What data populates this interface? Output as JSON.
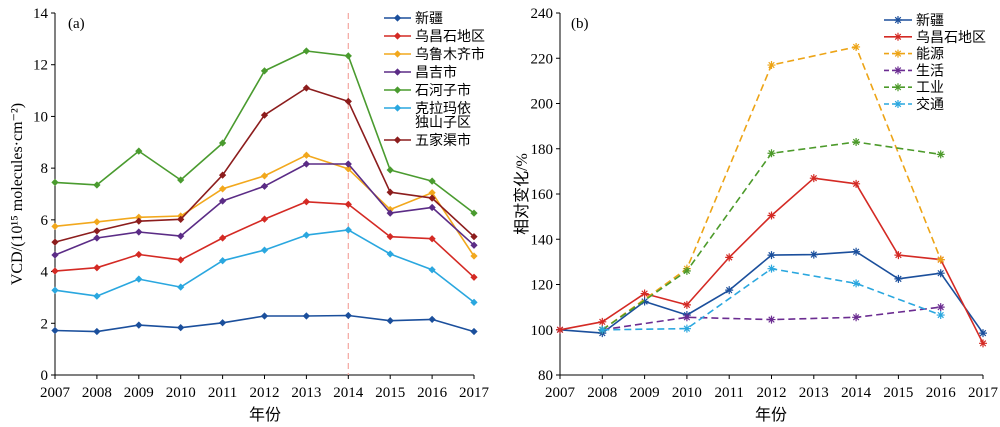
{
  "chart_data": [
    {
      "type": "line",
      "panel_label": "(a)",
      "x": [
        2007,
        2008,
        2009,
        2010,
        2011,
        2012,
        2013,
        2014,
        2015,
        2016,
        2017
      ],
      "xlim": [
        2007,
        2017
      ],
      "xlabel": "年份",
      "ylabel": "VCD/(10¹⁵ molecules·cm⁻²)",
      "ylim": [
        0,
        14
      ],
      "yticks": [
        0,
        2,
        4,
        6,
        8,
        10,
        12,
        14
      ],
      "grid": false,
      "legend_position": "top-right",
      "marker": "diamond",
      "reference_line": {
        "x": 2014,
        "style": "dashed",
        "color": "#f4a59e"
      },
      "series": [
        {
          "name": "新疆",
          "color": "#1b4f9c",
          "style": "solid",
          "values": [
            1.72,
            1.68,
            1.93,
            1.83,
            2.02,
            2.28,
            2.28,
            2.3,
            2.1,
            2.15,
            1.68
          ]
        },
        {
          "name": "乌昌石地区",
          "color": "#d42a24",
          "style": "solid",
          "values": [
            4.02,
            4.15,
            4.66,
            4.45,
            5.3,
            6.03,
            6.7,
            6.6,
            5.35,
            5.27,
            3.78
          ]
        },
        {
          "name": "乌鲁木齐市",
          "color": "#f2a81d",
          "style": "solid",
          "values": [
            5.75,
            5.92,
            6.1,
            6.15,
            7.2,
            7.7,
            8.5,
            7.97,
            6.4,
            7.05,
            4.6
          ]
        },
        {
          "name": "昌吉市",
          "color": "#5b2c86",
          "style": "solid",
          "values": [
            4.64,
            5.3,
            5.53,
            5.37,
            6.73,
            7.3,
            8.16,
            8.16,
            6.26,
            6.48,
            5.02
          ]
        },
        {
          "name": "石河子市",
          "color": "#4a9b2f",
          "style": "solid",
          "values": [
            7.45,
            7.35,
            8.66,
            7.54,
            8.97,
            11.76,
            12.53,
            12.34,
            7.93,
            7.5,
            6.26
          ]
        },
        {
          "name": "克拉玛依独山子区",
          "color": "#2aa7df",
          "style": "solid",
          "values": [
            3.28,
            3.05,
            3.71,
            3.4,
            4.42,
            4.83,
            5.41,
            5.61,
            4.68,
            4.07,
            2.81
          ]
        },
        {
          "name": "五家渠市",
          "color": "#8c1d1d",
          "style": "solid",
          "values": [
            5.14,
            5.57,
            5.95,
            6.02,
            7.73,
            10.05,
            11.1,
            10.58,
            7.07,
            6.84,
            5.35
          ]
        }
      ]
    },
    {
      "type": "line",
      "panel_label": "(b)",
      "x": [
        2007,
        2008,
        2009,
        2010,
        2011,
        2012,
        2013,
        2014,
        2015,
        2016,
        2017
      ],
      "xlim": [
        2007,
        2017
      ],
      "xlabel": "年份",
      "ylabel": "相对变化/%",
      "ylim": [
        80,
        240
      ],
      "yticks": [
        80,
        100,
        120,
        140,
        160,
        180,
        200,
        220,
        240
      ],
      "grid": false,
      "legend_position": "top-right",
      "marker": "asterisk",
      "series": [
        {
          "name": "新疆",
          "color": "#1b4f9c",
          "style": "solid",
          "values": [
            100,
            98.5,
            112.5,
            106.5,
            117.5,
            133,
            133.2,
            134.5,
            122.5,
            125,
            98.5
          ]
        },
        {
          "name": "乌昌石地区",
          "color": "#d42a24",
          "style": "solid",
          "values": [
            100,
            103.5,
            116,
            111,
            132,
            150.5,
            167,
            164.5,
            133,
            131,
            94
          ]
        },
        {
          "name": "能源",
          "color": "#eda416",
          "style": "dashed",
          "x": [
            2008,
            2010,
            2012,
            2014,
            2016
          ],
          "values": [
            100,
            127,
            217,
            225,
            131
          ]
        },
        {
          "name": "生活",
          "color": "#6b2c91",
          "style": "dashed",
          "x": [
            2008,
            2010,
            2012,
            2014,
            2016
          ],
          "values": [
            100,
            105.5,
            104.5,
            105.5,
            110
          ]
        },
        {
          "name": "工业",
          "color": "#4c9a2a",
          "style": "dashed",
          "x": [
            2008,
            2010,
            2012,
            2014,
            2016
          ],
          "values": [
            100,
            126,
            178,
            183,
            177.5
          ]
        },
        {
          "name": "交通",
          "color": "#2aa7df",
          "style": "dashed",
          "x": [
            2008,
            2010,
            2012,
            2014,
            2016
          ],
          "values": [
            100,
            100.5,
            127,
            120.5,
            106.5
          ]
        }
      ]
    }
  ]
}
